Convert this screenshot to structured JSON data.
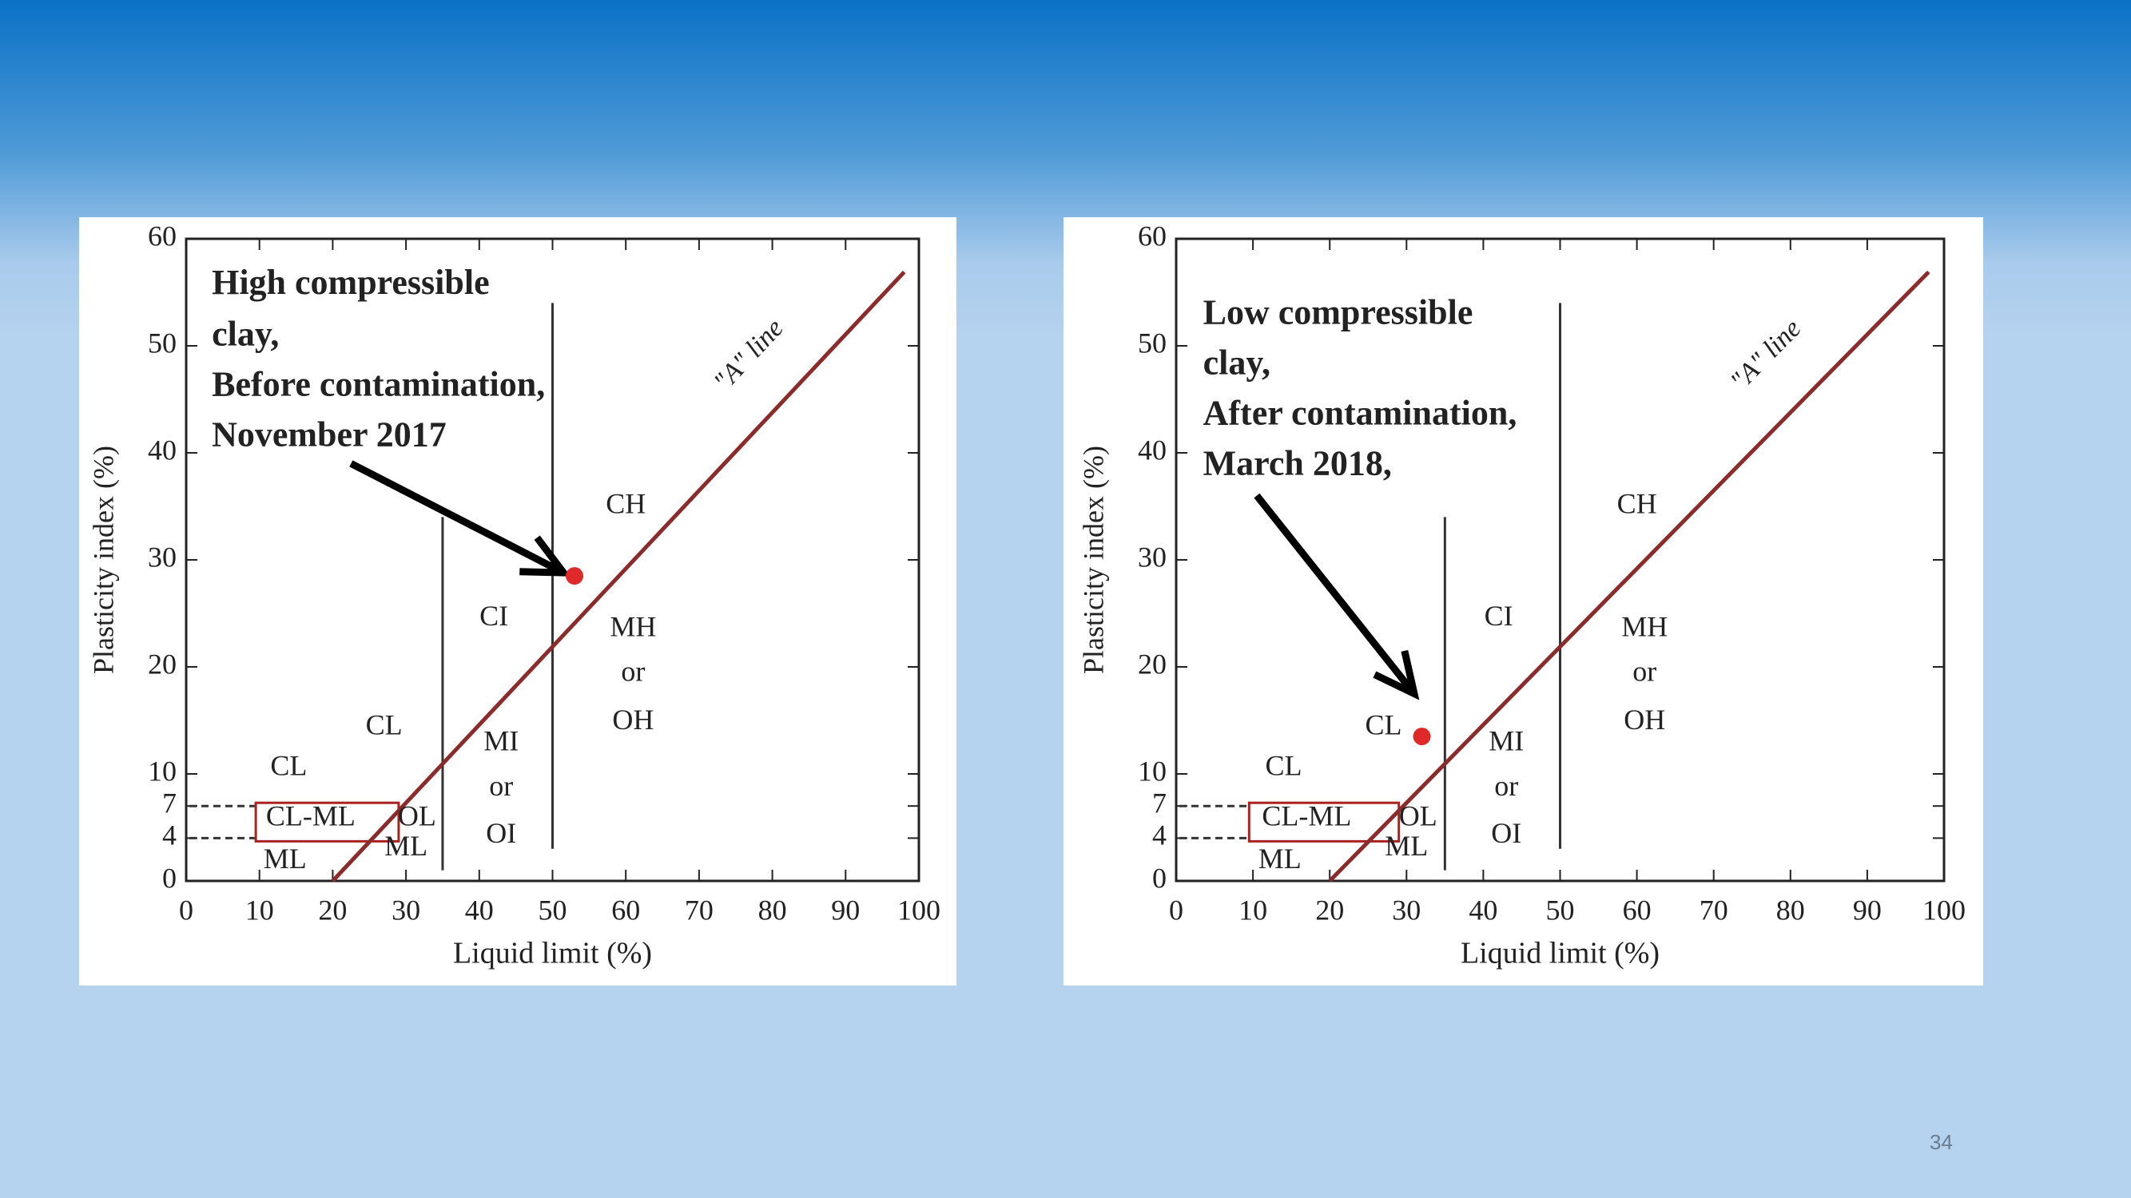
{
  "slide": {
    "page_number": "34"
  },
  "chart_data": [
    {
      "type": "scatter",
      "annotation": [
        "High compressible",
        "clay,",
        "Before contamination,",
        "November 2017"
      ],
      "xlabel": "Liquid limit (%)",
      "ylabel": "Plasticity index (%)",
      "xlim": [
        0,
        100
      ],
      "ylim": [
        0,
        60
      ],
      "xticks": [
        0,
        10,
        20,
        30,
        40,
        50,
        60,
        70,
        80,
        90,
        100
      ],
      "yticks": [
        0,
        4,
        7,
        10,
        20,
        30,
        40,
        50,
        60
      ],
      "x": [
        53
      ],
      "values": [
        28.5
      ],
      "color": "#e02a2a",
      "a_line": {
        "label": "\"A\" line",
        "x": [
          20,
          98
        ],
        "values": [
          0,
          56.9
        ],
        "color": "#8b2c2c"
      },
      "zone_lines": [
        {
          "x": [
            35,
            35
          ],
          "values": [
            1,
            34
          ]
        },
        {
          "x": [
            50,
            50
          ],
          "values": [
            3,
            54
          ]
        }
      ],
      "zone_labels": [
        "CL",
        "CL-ML",
        "ML",
        "OL",
        "ML",
        "CL",
        "MI",
        "or",
        "OI",
        "CI",
        "CH",
        "MH",
        "or",
        "OH"
      ]
    },
    {
      "type": "scatter",
      "annotation": [
        "Low compressible",
        "clay,",
        "After contamination,",
        "March 2018,"
      ],
      "xlabel": "Liquid limit (%)",
      "ylabel": "Plasticity index (%)",
      "xlim": [
        0,
        100
      ],
      "ylim": [
        0,
        60
      ],
      "xticks": [
        0,
        10,
        20,
        30,
        40,
        50,
        60,
        70,
        80,
        90,
        100
      ],
      "yticks": [
        0,
        4,
        7,
        10,
        20,
        30,
        40,
        50,
        60
      ],
      "x": [
        32
      ],
      "values": [
        13.5
      ],
      "color": "#e02a2a",
      "a_line": {
        "label": "\"A\" line",
        "x": [
          20,
          98
        ],
        "values": [
          0,
          56.9
        ],
        "color": "#8b2c2c"
      },
      "zone_lines": [
        {
          "x": [
            35,
            35
          ],
          "values": [
            1,
            34
          ]
        },
        {
          "x": [
            50,
            50
          ],
          "values": [
            3,
            54
          ]
        }
      ],
      "zone_labels": [
        "CL",
        "CL-ML",
        "ML",
        "OL",
        "ML",
        "CL",
        "MI",
        "or",
        "OI",
        "CI",
        "CH",
        "MH",
        "or",
        "OH"
      ]
    }
  ]
}
